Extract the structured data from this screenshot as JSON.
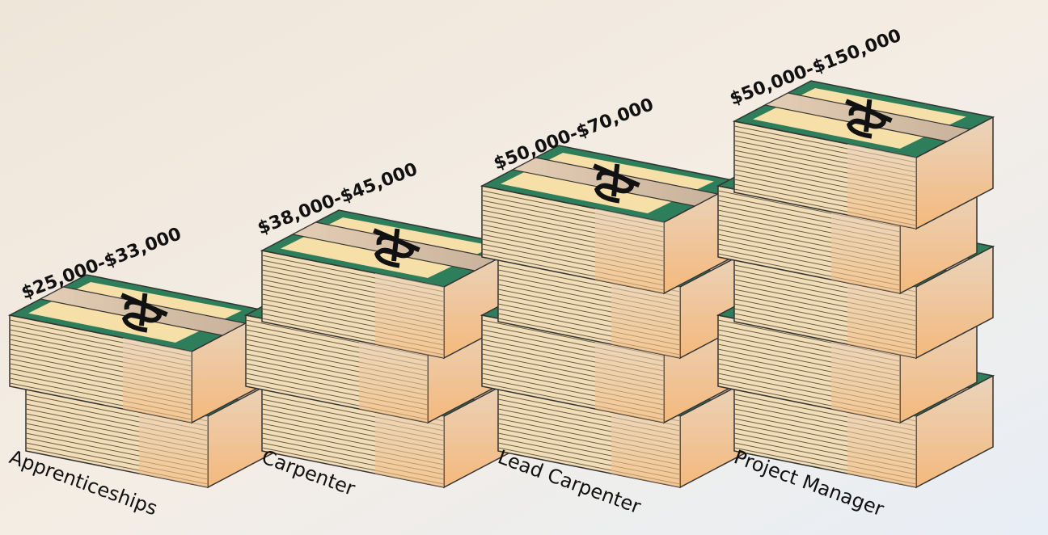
{
  "items": [
    {
      "salary": "$25,000-$33,000",
      "role": "Apprenticeships"
    },
    {
      "salary": "$38,000-$45,000",
      "role": "Carpenter"
    },
    {
      "salary": "$50,000-$70,000",
      "role": "Lead Carpenter"
    },
    {
      "salary": "$50,000-$150,000",
      "role": "Project Manager"
    }
  ]
}
